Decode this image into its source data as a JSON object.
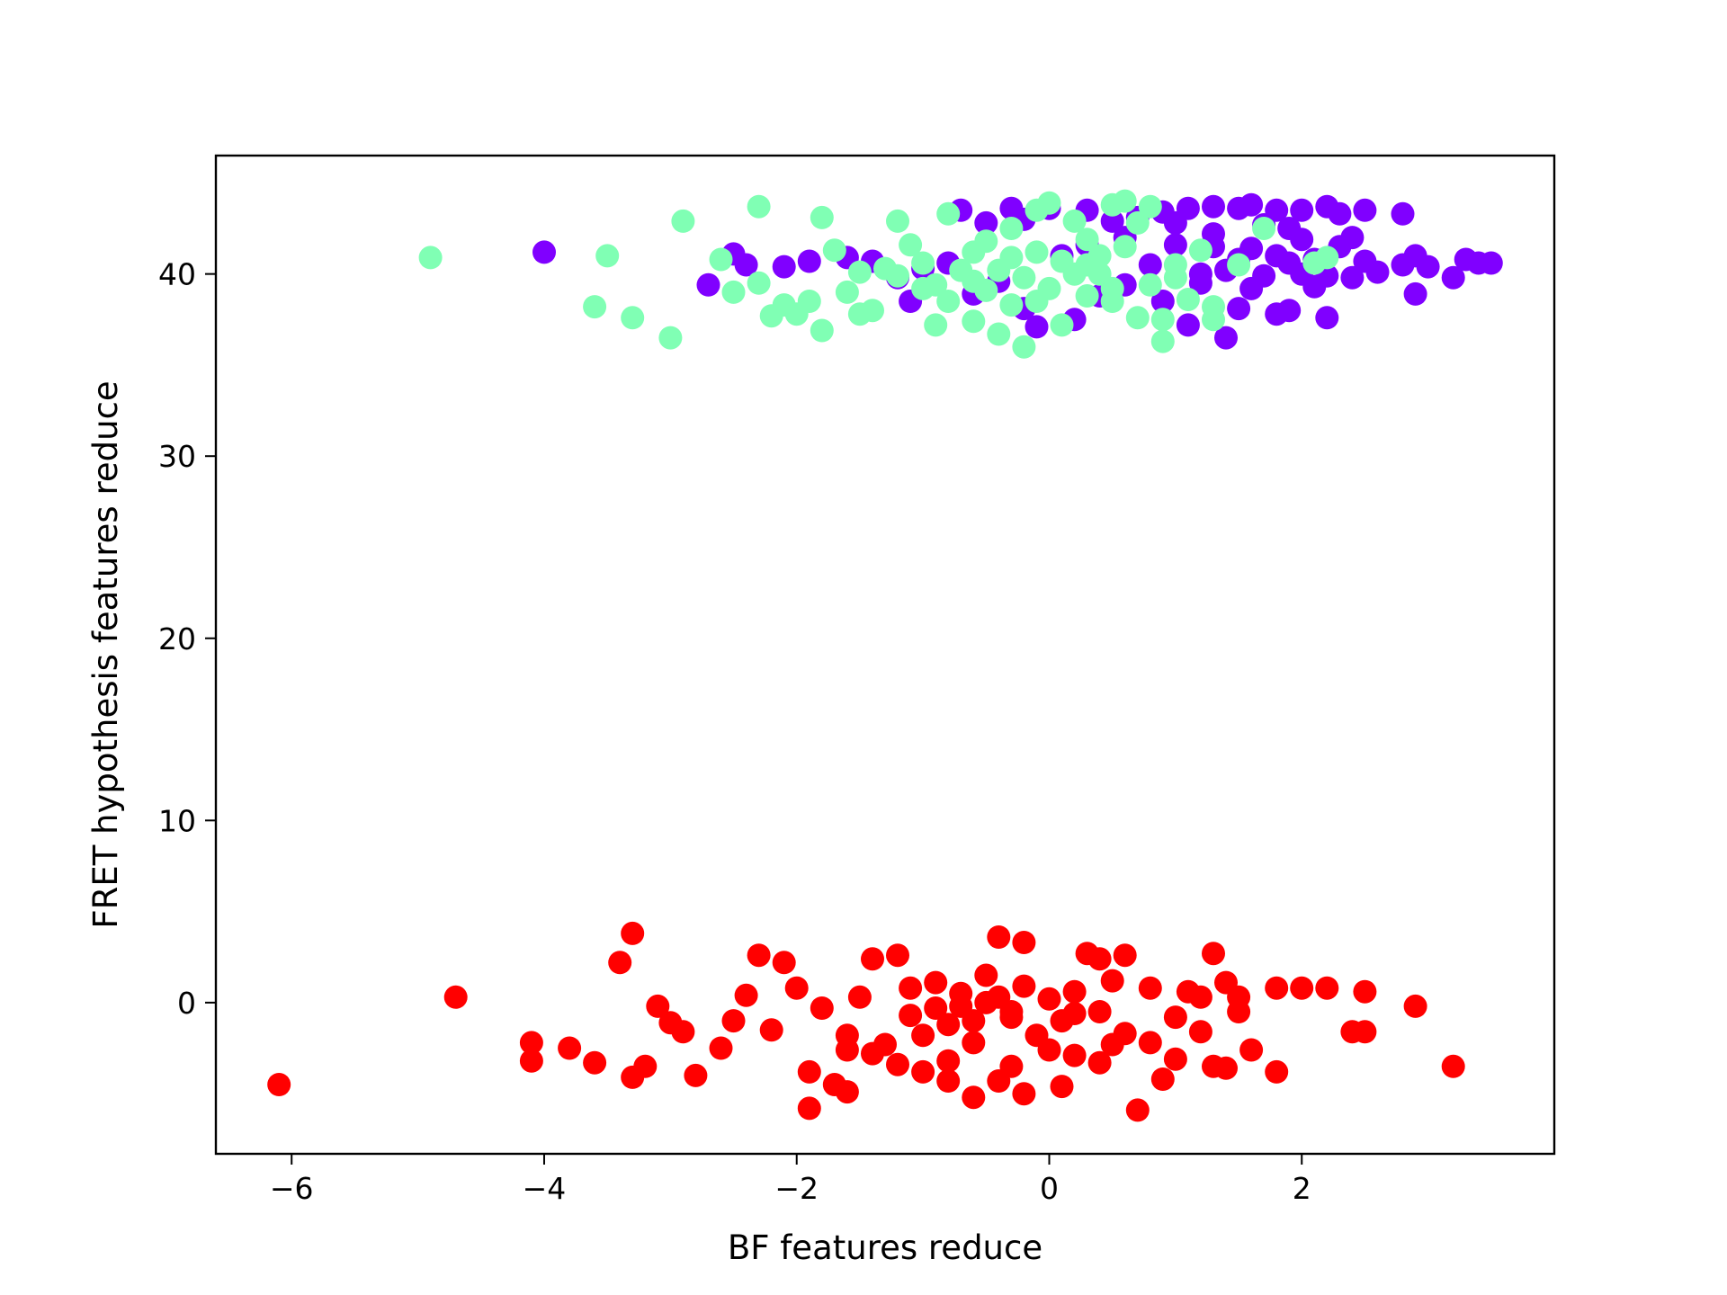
{
  "chart_data": {
    "type": "scatter",
    "title": "",
    "xlabel": "BF features reduce",
    "ylabel": "FRET hypothesis features reduce",
    "xlim": [
      -6.6,
      4.0
    ],
    "ylim": [
      -8.3,
      46.5
    ],
    "xticks": [
      -6,
      -4,
      -2,
      0,
      2
    ],
    "xtick_labels": [
      "−6",
      "−4",
      "−2",
      "0",
      "2"
    ],
    "yticks": [
      0,
      10,
      20,
      30,
      40
    ],
    "ytick_labels": [
      "0",
      "10",
      "20",
      "30",
      "40"
    ],
    "grid": false,
    "legend": "none",
    "series": [
      {
        "color": "#8000ff",
        "points": [
          [
            -4.0,
            41.2
          ],
          [
            -2.7,
            39.4
          ],
          [
            -2.5,
            41.1
          ],
          [
            -2.4,
            40.5
          ],
          [
            -2.1,
            40.4
          ],
          [
            -1.9,
            40.7
          ],
          [
            -1.6,
            40.9
          ],
          [
            -1.4,
            40.7
          ],
          [
            -1.2,
            39.8
          ],
          [
            -1.1,
            38.5
          ],
          [
            -1.0,
            40.3
          ],
          [
            -0.8,
            40.6
          ],
          [
            -0.7,
            43.5
          ],
          [
            -0.6,
            38.9
          ],
          [
            -0.5,
            42.8
          ],
          [
            -0.4,
            39.6
          ],
          [
            -0.3,
            43.6
          ],
          [
            -0.2,
            38.1
          ],
          [
            -0.2,
            43.0
          ],
          [
            -0.1,
            37.1
          ],
          [
            0.0,
            43.6
          ],
          [
            0.1,
            41.0
          ],
          [
            0.2,
            37.5
          ],
          [
            0.3,
            43.5
          ],
          [
            0.4,
            38.8
          ],
          [
            0.5,
            42.9
          ],
          [
            0.6,
            39.4
          ],
          [
            0.7,
            43.1
          ],
          [
            0.8,
            40.5
          ],
          [
            0.9,
            38.5
          ],
          [
            0.9,
            43.4
          ],
          [
            1.0,
            41.6
          ],
          [
            1.1,
            37.2
          ],
          [
            1.1,
            43.6
          ],
          [
            1.2,
            39.5
          ],
          [
            1.3,
            42.2
          ],
          [
            1.3,
            43.7
          ],
          [
            1.4,
            36.5
          ],
          [
            1.4,
            40.2
          ],
          [
            1.5,
            43.6
          ],
          [
            1.5,
            38.1
          ],
          [
            1.6,
            43.8
          ],
          [
            1.6,
            41.4
          ],
          [
            1.7,
            39.9
          ],
          [
            1.7,
            42.7
          ],
          [
            1.8,
            37.8
          ],
          [
            1.8,
            43.5
          ],
          [
            1.9,
            40.6
          ],
          [
            1.9,
            38.0
          ],
          [
            2.0,
            41.9
          ],
          [
            2.0,
            43.5
          ],
          [
            2.1,
            39.3
          ],
          [
            2.1,
            40.8
          ],
          [
            2.2,
            37.6
          ],
          [
            2.2,
            43.7
          ],
          [
            2.3,
            41.5
          ],
          [
            2.3,
            43.3
          ],
          [
            2.4,
            39.8
          ],
          [
            2.4,
            42.0
          ],
          [
            2.5,
            40.7
          ],
          [
            2.5,
            43.5
          ],
          [
            2.6,
            40.1
          ],
          [
            2.8,
            43.3
          ],
          [
            2.8,
            40.5
          ],
          [
            2.9,
            41.0
          ],
          [
            2.9,
            38.9
          ],
          [
            3.0,
            40.4
          ],
          [
            3.2,
            39.8
          ],
          [
            3.3,
            40.8
          ],
          [
            3.4,
            40.6
          ],
          [
            3.5,
            40.6
          ],
          [
            1.2,
            40.0
          ],
          [
            1.5,
            40.8
          ],
          [
            1.8,
            41.0
          ],
          [
            2.0,
            40.0
          ],
          [
            1.3,
            41.5
          ],
          [
            1.0,
            42.8
          ],
          [
            0.6,
            42.0
          ],
          [
            0.3,
            41.6
          ],
          [
            1.6,
            39.2
          ],
          [
            2.2,
            39.9
          ],
          [
            1.9,
            42.5
          ]
        ]
      },
      {
        "color": "#80ffb4",
        "points": [
          [
            -4.9,
            40.9
          ],
          [
            -3.6,
            38.2
          ],
          [
            -3.5,
            41.0
          ],
          [
            -3.3,
            37.6
          ],
          [
            -3.0,
            36.5
          ],
          [
            -2.9,
            42.9
          ],
          [
            -2.6,
            40.8
          ],
          [
            -2.5,
            39.0
          ],
          [
            -2.3,
            43.7
          ],
          [
            -2.3,
            39.5
          ],
          [
            -2.2,
            37.7
          ],
          [
            -2.1,
            38.3
          ],
          [
            -2.0,
            37.8
          ],
          [
            -1.9,
            38.5
          ],
          [
            -1.8,
            43.1
          ],
          [
            -1.8,
            36.9
          ],
          [
            -1.7,
            41.3
          ],
          [
            -1.6,
            39.0
          ],
          [
            -1.5,
            37.8
          ],
          [
            -1.4,
            38.0
          ],
          [
            -1.3,
            40.3
          ],
          [
            -1.2,
            42.9
          ],
          [
            -1.1,
            41.6
          ],
          [
            -1.0,
            39.2
          ],
          [
            -0.9,
            37.2
          ],
          [
            -0.8,
            43.3
          ],
          [
            -0.7,
            40.2
          ],
          [
            -0.6,
            37.4
          ],
          [
            -0.5,
            41.8
          ],
          [
            -0.5,
            39.1
          ],
          [
            -0.4,
            36.7
          ],
          [
            -0.3,
            42.5
          ],
          [
            -0.3,
            38.3
          ],
          [
            -0.2,
            36.0
          ],
          [
            -0.1,
            41.2
          ],
          [
            -0.1,
            43.5
          ],
          [
            0.0,
            39.2
          ],
          [
            0.0,
            43.9
          ],
          [
            0.1,
            37.2
          ],
          [
            0.1,
            40.7
          ],
          [
            0.2,
            42.9
          ],
          [
            0.3,
            38.8
          ],
          [
            0.3,
            41.9
          ],
          [
            0.4,
            40.0
          ],
          [
            0.5,
            43.8
          ],
          [
            0.5,
            38.5
          ],
          [
            0.6,
            41.5
          ],
          [
            0.6,
            44.0
          ],
          [
            0.7,
            37.6
          ],
          [
            0.7,
            42.8
          ],
          [
            0.8,
            39.4
          ],
          [
            0.8,
            43.7
          ],
          [
            0.9,
            36.3
          ],
          [
            0.9,
            37.5
          ],
          [
            1.0,
            40.5
          ],
          [
            1.0,
            39.8
          ],
          [
            1.1,
            38.6
          ],
          [
            1.2,
            41.3
          ],
          [
            1.3,
            38.2
          ],
          [
            1.3,
            37.5
          ],
          [
            1.5,
            40.5
          ],
          [
            1.7,
            42.5
          ],
          [
            2.1,
            40.6
          ],
          [
            2.2,
            40.9
          ],
          [
            -0.4,
            40.2
          ],
          [
            -0.6,
            39.6
          ],
          [
            -1.0,
            40.6
          ],
          [
            -0.8,
            38.5
          ],
          [
            0.2,
            40.0
          ],
          [
            -0.2,
            39.8
          ],
          [
            0.4,
            41.0
          ],
          [
            -0.3,
            40.9
          ],
          [
            -1.2,
            39.9
          ],
          [
            -1.5,
            40.1
          ],
          [
            -0.9,
            39.4
          ],
          [
            0.5,
            39.2
          ],
          [
            -0.1,
            38.5
          ],
          [
            0.3,
            40.5
          ],
          [
            -0.6,
            41.2
          ]
        ]
      },
      {
        "color": "#ff0000",
        "points": [
          [
            -6.1,
            -4.5
          ],
          [
            -4.7,
            0.3
          ],
          [
            -4.1,
            -2.2
          ],
          [
            -4.1,
            -3.2
          ],
          [
            -3.8,
            -2.5
          ],
          [
            -3.6,
            -3.3
          ],
          [
            -3.4,
            2.2
          ],
          [
            -3.3,
            3.8
          ],
          [
            -3.3,
            -4.1
          ],
          [
            -3.2,
            -3.5
          ],
          [
            -3.1,
            -0.2
          ],
          [
            -3.0,
            -1.1
          ],
          [
            -2.9,
            -1.6
          ],
          [
            -2.8,
            -4.0
          ],
          [
            -2.6,
            -2.5
          ],
          [
            -2.5,
            -1.0
          ],
          [
            -2.4,
            0.4
          ],
          [
            -2.3,
            2.6
          ],
          [
            -2.2,
            -1.5
          ],
          [
            -2.1,
            2.2
          ],
          [
            -2.0,
            0.8
          ],
          [
            -1.9,
            -3.8
          ],
          [
            -1.9,
            -5.8
          ],
          [
            -1.8,
            -0.3
          ],
          [
            -1.7,
            -4.5
          ],
          [
            -1.6,
            -1.8
          ],
          [
            -1.6,
            -4.9
          ],
          [
            -1.5,
            0.3
          ],
          [
            -1.4,
            2.4
          ],
          [
            -1.3,
            -2.3
          ],
          [
            -1.2,
            2.6
          ],
          [
            -1.2,
            -3.4
          ],
          [
            -1.1,
            0.8
          ],
          [
            -1.0,
            -1.8
          ],
          [
            -1.0,
            -3.8
          ],
          [
            -0.9,
            1.1
          ],
          [
            -0.8,
            -1.2
          ],
          [
            -0.8,
            -3.2
          ],
          [
            -0.7,
            0.5
          ],
          [
            -0.6,
            -5.2
          ],
          [
            -0.6,
            -2.2
          ],
          [
            -0.5,
            1.5
          ],
          [
            -0.4,
            3.6
          ],
          [
            -0.4,
            -4.3
          ],
          [
            -0.3,
            -0.8
          ],
          [
            -0.3,
            -3.5
          ],
          [
            -0.2,
            0.9
          ],
          [
            -0.2,
            3.3
          ],
          [
            -0.2,
            -5.0
          ],
          [
            -0.1,
            -1.8
          ],
          [
            0.0,
            0.2
          ],
          [
            0.0,
            -2.6
          ],
          [
            0.1,
            -4.6
          ],
          [
            0.2,
            -2.9
          ],
          [
            0.2,
            0.6
          ],
          [
            0.3,
            2.7
          ],
          [
            0.4,
            -0.5
          ],
          [
            0.4,
            2.4
          ],
          [
            0.4,
            -3.3
          ],
          [
            0.5,
            1.2
          ],
          [
            0.6,
            2.6
          ],
          [
            0.6,
            -1.7
          ],
          [
            0.7,
            -5.9
          ],
          [
            0.8,
            0.8
          ],
          [
            0.8,
            -2.2
          ],
          [
            0.9,
            -4.2
          ],
          [
            1.0,
            -0.8
          ],
          [
            1.0,
            -3.1
          ],
          [
            1.1,
            0.6
          ],
          [
            1.2,
            -1.6
          ],
          [
            1.2,
            0.3
          ],
          [
            1.3,
            2.7
          ],
          [
            1.3,
            -3.5
          ],
          [
            1.4,
            1.1
          ],
          [
            1.4,
            -3.6
          ],
          [
            1.5,
            -0.5
          ],
          [
            1.5,
            0.3
          ],
          [
            1.6,
            -2.6
          ],
          [
            1.8,
            0.8
          ],
          [
            1.8,
            -3.8
          ],
          [
            2.0,
            0.8
          ],
          [
            2.2,
            0.8
          ],
          [
            2.4,
            -1.6
          ],
          [
            2.5,
            -1.6
          ],
          [
            2.5,
            0.6
          ],
          [
            2.9,
            -0.2
          ],
          [
            3.2,
            -3.5
          ],
          [
            -0.7,
            -0.2
          ],
          [
            -0.5,
            0.0
          ],
          [
            -1.1,
            -0.7
          ],
          [
            -0.3,
            -0.5
          ],
          [
            0.1,
            -1.0
          ],
          [
            -0.9,
            -0.3
          ],
          [
            -0.4,
            0.3
          ],
          [
            0.2,
            -0.6
          ],
          [
            -1.4,
            -2.8
          ],
          [
            -0.6,
            -1.0
          ],
          [
            -1.6,
            -2.6
          ],
          [
            0.5,
            -2.3
          ],
          [
            -0.8,
            -4.3
          ]
        ]
      }
    ]
  }
}
